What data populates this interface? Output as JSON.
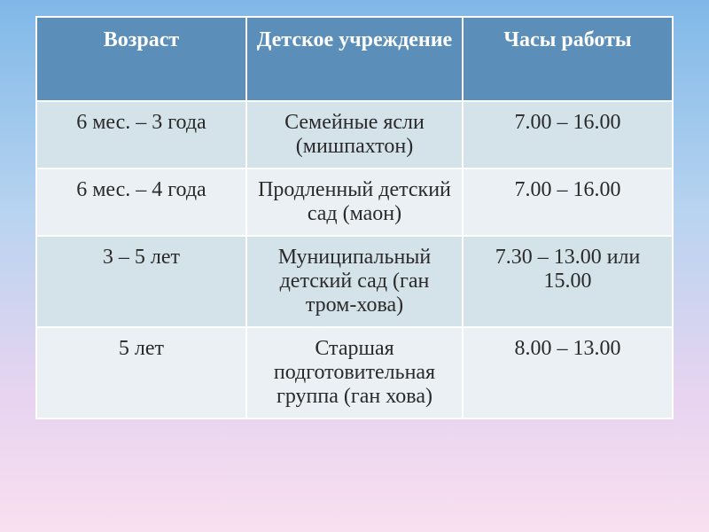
{
  "table": {
    "header_bg": "#5b8fb9",
    "header_text_color": "#ffffff",
    "border_color": "#ffffff",
    "row_even_bg": "#d4e3ea",
    "row_odd_bg": "#eaf0f4",
    "cell_text_color": "#2a2a2a",
    "font_family": "Times New Roman",
    "header_fontsize": 24,
    "cell_fontsize": 24,
    "columns": [
      {
        "label": "Возраст",
        "width_pct": 33
      },
      {
        "label": "Детское учреждение",
        "width_pct": 34
      },
      {
        "label": "Часы работы",
        "width_pct": 33
      }
    ],
    "rows": [
      {
        "age": "6 мес. – 3 года",
        "institution": "Семейные ясли (мишпахтон)",
        "hours": "7.00 – 16.00"
      },
      {
        "age": "6 мес. – 4 года",
        "institution": "Продленный детский сад (маон)",
        "hours": "7.00 – 16.00"
      },
      {
        "age": "3 – 5 лет",
        "institution": "Муниципальный детский сад (ган тром-хова)",
        "hours": "7.30 – 13.00 или 15.00"
      },
      {
        "age": "5 лет",
        "institution": "Старшая подготовительная группа (ган хова)",
        "hours": "8.00 – 13.00"
      }
    ]
  },
  "background": {
    "gradient_stops": [
      "#7fb8e8",
      "#b8d4f0",
      "#e8d4f0",
      "#f8e0f0"
    ]
  }
}
